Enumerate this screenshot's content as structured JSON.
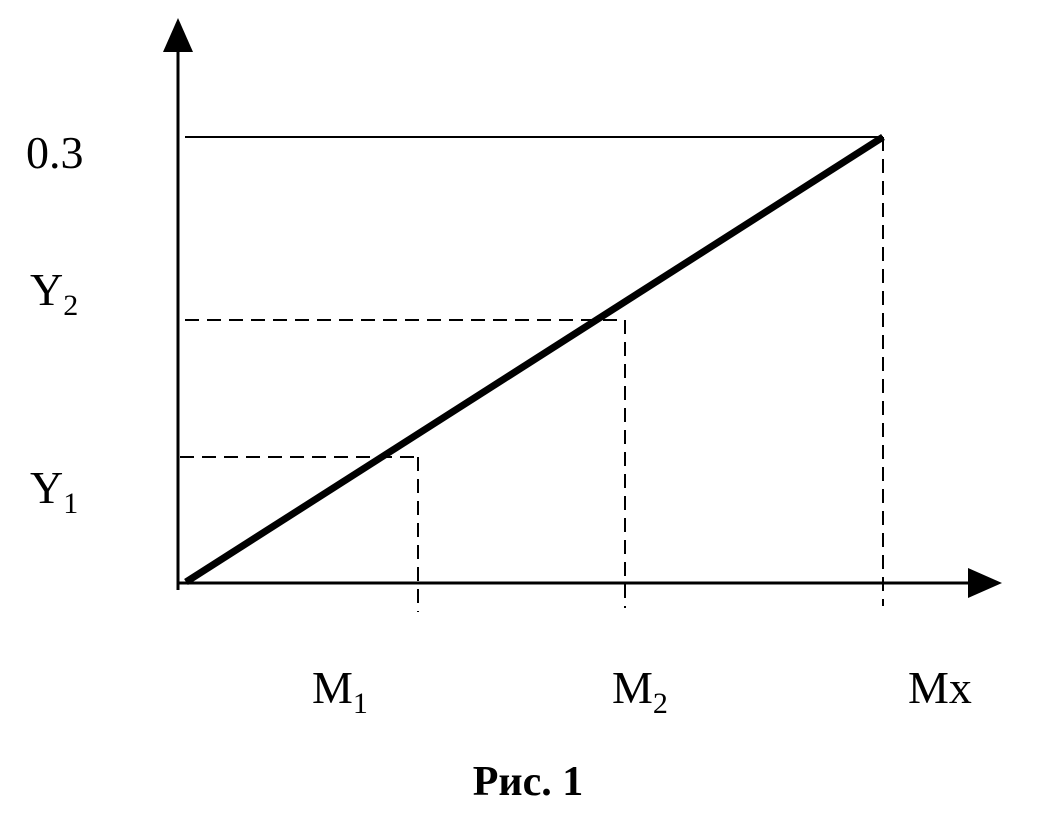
{
  "y_axis": {
    "ticks": [
      {
        "main": "0.3"
      },
      {
        "main": "Y",
        "sub": "2"
      },
      {
        "main": "Y",
        "sub": "1"
      }
    ]
  },
  "x_axis": {
    "ticks": [
      {
        "main": "M",
        "sub": "1"
      },
      {
        "main": "M",
        "sub": "2"
      },
      {
        "main": "Mx"
      }
    ]
  },
  "caption": "Рис. 1"
}
